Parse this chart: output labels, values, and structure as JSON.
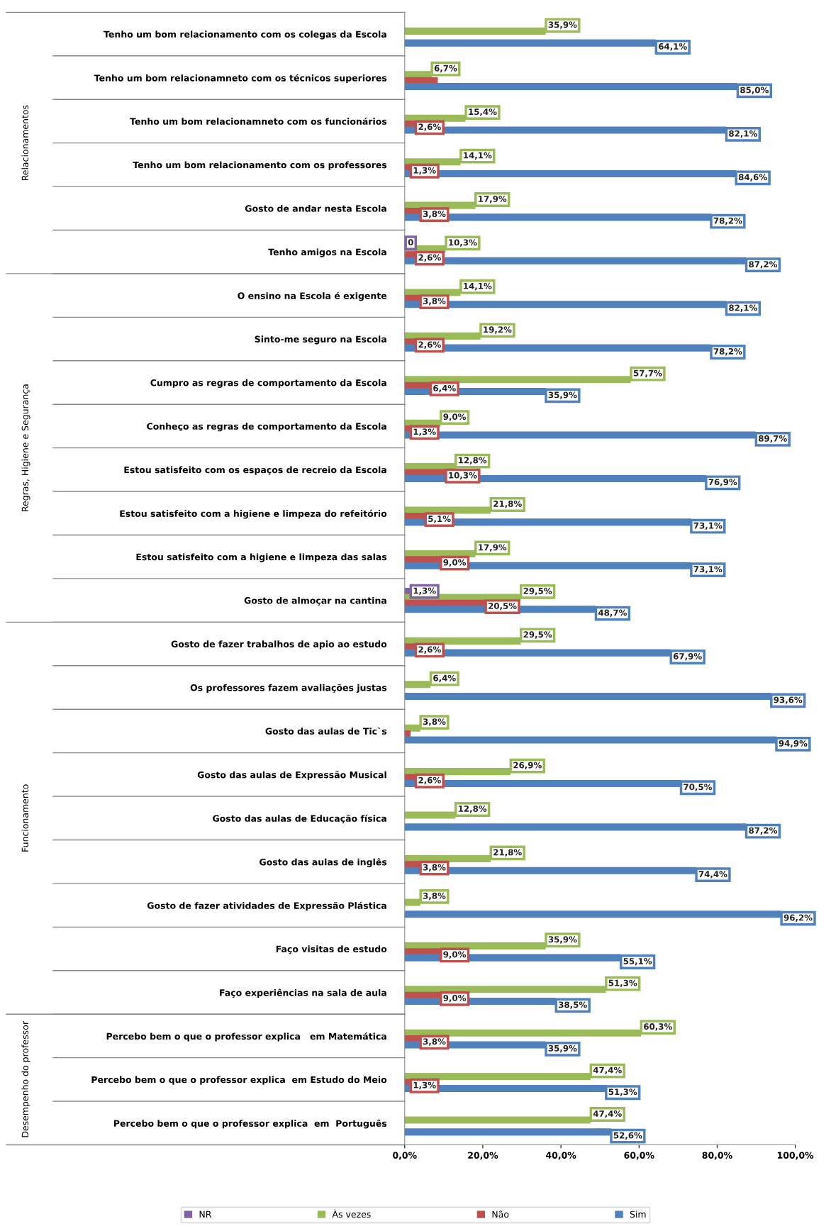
{
  "chart_data": {
    "type": "bar",
    "orientation": "horizontal",
    "categories": [
      "Tenho um bom relacionamento com os colegas da Escola",
      "Tenho um bom relacionamneto com os técnicos superiores",
      "Tenho um bom relacionamneto com os funcionários",
      "Tenho um bom relacionamento com os professores",
      "Gosto de andar nesta Escola",
      "Tenho amigos na Escola",
      "O ensino na Escola é exigente",
      "Sinto-me seguro na Escola",
      "Cumpro as regras de comportamento da Escola",
      "Conheço as regras de comportamento da Escola",
      "Estou satisfeito com os espaços de recreio da Escola",
      "Estou satisfeito com a higiene e limpeza do refeitório",
      "Estou satisfeito com a higiene e limpeza das salas",
      "Gosto de almoçar na cantina",
      "Gosto de fazer trabalhos de apio ao estudo",
      "Os professores fazem avaliações justas",
      "Gosto das aulas de Tic`s",
      "Gosto das aulas de Expressão Musical",
      "Gosto das aulas de Educação física",
      "Gosto das aulas de inglês",
      "Gosto de fazer atividades de Expressão Plástica",
      "Faço visitas de estudo",
      "Faço experiências na sala de aula",
      "Percebo bem o que o professor explica   em Matemática",
      "Percebo bem o que o professor explica  em Estudo do Meio",
      "Percebo bem o que o professor explica  em  Português"
    ],
    "series": [
      {
        "name": "NR",
        "color": "#8064a2",
        "values": [
          null,
          null,
          null,
          null,
          null,
          0,
          null,
          null,
          null,
          null,
          null,
          null,
          null,
          1.3,
          null,
          null,
          null,
          null,
          null,
          null,
          null,
          null,
          null,
          null,
          null,
          null
        ],
        "value_labels": [
          null,
          null,
          null,
          null,
          null,
          "0",
          null,
          null,
          null,
          null,
          null,
          null,
          null,
          "1,3%",
          null,
          null,
          null,
          null,
          null,
          null,
          null,
          null,
          null,
          null,
          null,
          null
        ]
      },
      {
        "name": "Às vezes",
        "color": "#9bbb59",
        "values": [
          35.9,
          6.7,
          15.4,
          14.1,
          17.9,
          10.3,
          14.1,
          19.2,
          57.7,
          9.0,
          12.8,
          21.8,
          17.9,
          29.5,
          29.5,
          6.4,
          3.8,
          26.9,
          12.8,
          21.8,
          3.8,
          35.9,
          51.3,
          60.3,
          47.4,
          47.4
        ],
        "value_labels": [
          "35,9%",
          "6,7%",
          "15,4%",
          "14,1%",
          "17,9%",
          "10,3%",
          "14,1%",
          "19,2%",
          "57,7%",
          "9,0%",
          "12,8%",
          "21,8%",
          "17,9%",
          "29,5%",
          "29,5%",
          "6,4%",
          "3,8%",
          "26,9%",
          "12,8%",
          "21,8%",
          "3,8%",
          "35,9%",
          "51,3%",
          "60,3%",
          "47,4%",
          "47,4%"
        ]
      },
      {
        "name": "Não",
        "color": "#c0504d",
        "values": [
          null,
          8.3,
          2.6,
          1.3,
          3.8,
          2.6,
          3.8,
          2.6,
          6.4,
          1.3,
          10.3,
          5.1,
          9.0,
          20.5,
          2.6,
          null,
          1.3,
          2.6,
          null,
          3.8,
          null,
          9.0,
          9.0,
          3.8,
          1.3,
          null
        ],
        "value_labels": [
          null,
          null,
          "2,6%",
          "1,3%",
          "3,8%",
          "2,6%",
          "3,8%",
          "2,6%",
          "6,4%",
          "1,3%",
          "10,3%",
          "5,1%",
          "9,0%",
          "20,5%",
          "2,6%",
          null,
          null,
          "2,6%",
          null,
          "3,8%",
          null,
          "9,0%",
          "9,0%",
          "3,8%",
          "1,3%",
          null
        ]
      },
      {
        "name": "Sim",
        "color": "#4f81bd",
        "values": [
          64.1,
          85.0,
          82.1,
          84.6,
          78.2,
          87.2,
          82.1,
          78.2,
          35.9,
          89.7,
          76.9,
          73.1,
          73.1,
          48.7,
          67.9,
          93.6,
          94.9,
          70.5,
          87.2,
          74.4,
          96.2,
          55.1,
          38.5,
          35.9,
          51.3,
          52.6
        ],
        "value_labels": [
          "64,1%",
          "85,0%",
          "82,1%",
          "84,6%",
          "78,2%",
          "87,2%",
          "82,1%",
          "78,2%",
          "35,9%",
          "89,7%",
          "76,9%",
          "73,1%",
          "73,1%",
          "48,7%",
          "67,9%",
          "93,6%",
          "94,9%",
          "70,5%",
          "87,2%",
          "74,4%",
          "96,2%",
          "55,1%",
          "38,5%",
          "35,9%",
          "51,3%",
          "52,6%"
        ]
      }
    ],
    "xlim": [
      0,
      100
    ],
    "xticks": [
      {
        "value": 0,
        "label": "0,0%"
      },
      {
        "value": 20,
        "label": "20,0%"
      },
      {
        "value": 40,
        "label": "40,0%"
      },
      {
        "value": 60,
        "label": "60,0%"
      },
      {
        "value": 80,
        "label": "80,0%"
      },
      {
        "value": 100,
        "label": "100,0%"
      }
    ],
    "annotations": [
      "Relacionamentos",
      "Regras, Higiene e Segurança",
      "Funcionamento",
      "Desempenho do professor"
    ],
    "legend": "bottom",
    "grid": false
  }
}
